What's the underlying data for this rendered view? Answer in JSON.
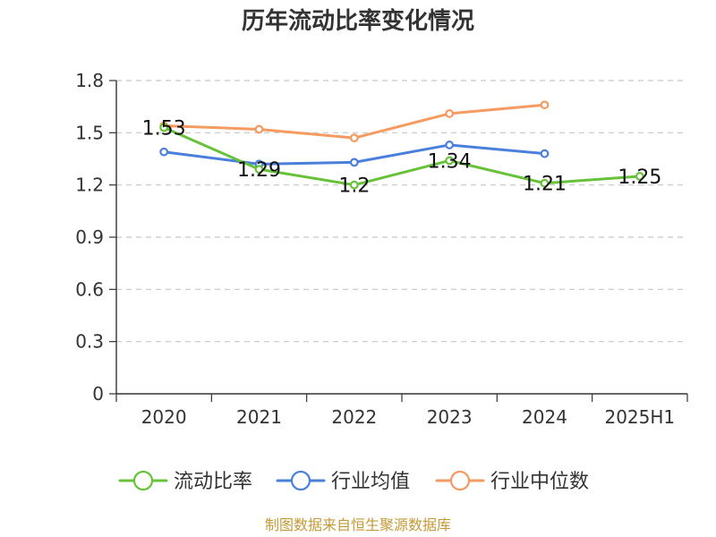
{
  "chart_data": {
    "type": "line",
    "title": "历年流动比率变化情况",
    "categories": [
      "2020",
      "2021",
      "2022",
      "2023",
      "2024",
      "2025H1"
    ],
    "ylim": [
      0,
      1.8
    ],
    "yticks": [
      "0",
      "0.3",
      "0.6",
      "0.9",
      "1.2",
      "1.5",
      "1.8"
    ],
    "grid": true,
    "legend_position": "bottom",
    "series": [
      {
        "name": "流动比率",
        "color": "#67c23a",
        "values": [
          1.53,
          1.29,
          1.2,
          1.34,
          1.21,
          1.25
        ],
        "labels": [
          "1.53",
          "1.29",
          "1.2",
          "1.34",
          "1.21",
          "1.25"
        ]
      },
      {
        "name": "行业均值",
        "color": "#4a7fdc",
        "values": [
          1.39,
          1.32,
          1.33,
          1.43,
          1.38,
          null
        ]
      },
      {
        "name": "行业中位数",
        "color": "#f59a61",
        "values": [
          1.54,
          1.52,
          1.47,
          1.61,
          1.66,
          null
        ]
      }
    ],
    "source": "制图数据来自恒生聚源数据库"
  }
}
